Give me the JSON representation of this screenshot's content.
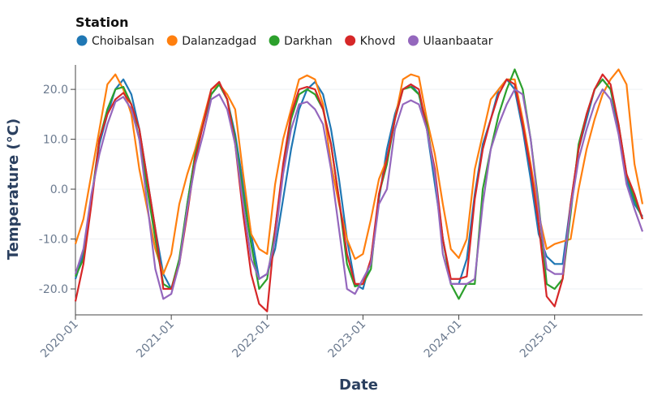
{
  "chart_data": {
    "type": "line",
    "legend_title": "Station",
    "x_label": "Date",
    "y_label": "Temperature (°C)",
    "x": [
      "2020-01",
      "2020-02",
      "2020-03",
      "2020-04",
      "2020-05",
      "2020-06",
      "2020-07",
      "2020-08",
      "2020-09",
      "2020-10",
      "2020-11",
      "2020-12",
      "2021-01",
      "2021-02",
      "2021-03",
      "2021-04",
      "2021-05",
      "2021-06",
      "2021-07",
      "2021-08",
      "2021-09",
      "2021-10",
      "2021-11",
      "2021-12",
      "2022-01",
      "2022-02",
      "2022-03",
      "2022-04",
      "2022-05",
      "2022-06",
      "2022-07",
      "2022-08",
      "2022-09",
      "2022-10",
      "2022-11",
      "2022-12",
      "2023-01",
      "2023-02",
      "2023-03",
      "2023-04",
      "2023-05",
      "2023-06",
      "2023-07",
      "2023-08",
      "2023-09",
      "2023-10",
      "2023-11",
      "2023-12",
      "2024-01",
      "2024-02",
      "2024-03",
      "2024-04",
      "2024-05",
      "2024-06",
      "2024-07",
      "2024-08",
      "2024-09",
      "2024-10",
      "2024-11",
      "2024-12",
      "2025-01",
      "2025-02",
      "2025-03",
      "2025-04",
      "2025-05",
      "2025-06",
      "2025-07",
      "2025-08",
      "2025-09",
      "2025-10",
      "2025-11",
      "2025-12"
    ],
    "xticks": [
      "2020-01",
      "2021-01",
      "2022-01",
      "2023-01",
      "2024-01",
      "2025-01"
    ],
    "ylim": [
      -25.2,
      24.9
    ],
    "yticks": [
      {
        "value": -20,
        "label": "-20.0"
      },
      {
        "value": -10,
        "label": "-10.0"
      },
      {
        "value": 0,
        "label": "0.0"
      },
      {
        "value": 10,
        "label": "10.0"
      },
      {
        "value": 20,
        "label": "20.0"
      }
    ],
    "grid": true,
    "legend_position": "top-left",
    "series": [
      {
        "name": "Choibalsan",
        "color": "#1f77b4",
        "values": [
          -18,
          -13,
          -2,
          9,
          15,
          20,
          22,
          19,
          12,
          2,
          -8,
          -17,
          -20,
          -15,
          -3,
          7,
          13,
          19,
          21,
          18,
          11,
          1,
          -9,
          -18,
          -17,
          -12,
          -2,
          8,
          16,
          20,
          21.5,
          19,
          12,
          2,
          -10,
          -19,
          -20,
          -14,
          -2,
          8,
          15,
          20,
          21,
          19,
          12,
          1,
          -10,
          -19,
          -19,
          -14,
          -1,
          9,
          14,
          20,
          22,
          20,
          12,
          2,
          -9,
          -13.5,
          -15,
          -15,
          -3,
          8,
          14,
          20,
          22,
          20,
          12,
          2,
          -3,
          -5.5
        ]
      },
      {
        "name": "Dalanzadgad",
        "color": "#ff7f0e",
        "values": [
          -11,
          -6,
          3,
          12,
          21,
          23,
          20,
          15,
          4,
          -4,
          -12,
          -17,
          -13,
          -3,
          3,
          8,
          14,
          20,
          21,
          19,
          16,
          3,
          -9,
          -12,
          -13,
          1,
          10,
          16,
          22,
          22.8,
          22,
          17,
          5,
          -3,
          -10,
          -14,
          -13,
          -6,
          2,
          6,
          14,
          22,
          23,
          22.5,
          14,
          7,
          -3,
          -12,
          -13.8,
          -10,
          4,
          11,
          18,
          20,
          22,
          22,
          14,
          5,
          -5,
          -12,
          -11,
          -10.5,
          -10,
          0,
          8,
          14,
          19,
          22,
          24,
          21,
          5,
          -3
        ]
      },
      {
        "name": "Darkhan",
        "color": "#2ca02c",
        "values": [
          -17.5,
          -14,
          -2,
          10,
          16,
          20,
          20.5,
          17,
          10,
          0,
          -10,
          -19,
          -20,
          -14,
          -3,
          7,
          13,
          19,
          21,
          18,
          10,
          -1,
          -11,
          -20,
          -18,
          -8,
          4,
          14,
          19,
          20,
          19,
          16,
          9,
          -2,
          -15,
          -19.5,
          -19,
          -16,
          -1,
          5,
          14,
          20,
          20.5,
          19,
          13,
          3,
          -10,
          -19,
          -22,
          -19,
          -19,
          0,
          8,
          15,
          20,
          24,
          20,
          10,
          -3,
          -19,
          -20,
          -18,
          -5,
          9,
          15,
          20,
          22,
          20,
          13,
          3,
          -2,
          -6
        ]
      },
      {
        "name": "Khovd",
        "color": "#d62728",
        "values": [
          -22.5,
          -15,
          -3,
          10,
          15,
          18,
          19.3,
          17,
          12,
          2,
          -8,
          -20,
          -20,
          -15,
          -5,
          6,
          13,
          20,
          21.5,
          18,
          9,
          -5,
          -17,
          -23,
          -24.5,
          -8,
          5,
          15,
          20,
          20.5,
          20,
          16,
          9,
          -2,
          -13,
          -19,
          -19,
          -14,
          -1,
          6,
          14,
          20,
          21,
          20,
          12,
          4,
          -10,
          -18,
          -18,
          -17.5,
          -2,
          8,
          14,
          19,
          22,
          21,
          13,
          4,
          -7,
          -21.5,
          -23.5,
          -18,
          -3,
          8,
          15,
          20,
          23,
          21,
          13,
          3,
          -1,
          -6
        ]
      },
      {
        "name": "Ulaanbaatar",
        "color": "#9467bd",
        "values": [
          -17,
          -12,
          -1,
          7,
          13,
          17.5,
          18.5,
          16,
          10,
          -3,
          -16,
          -22,
          -21,
          -15,
          -4,
          5,
          11,
          18,
          19,
          16,
          9,
          -3,
          -14,
          -18,
          -17,
          -10,
          3,
          12,
          17,
          17.5,
          16,
          13,
          4,
          -8,
          -20,
          -21,
          -18,
          -15,
          -3,
          0,
          12,
          17,
          17.8,
          17,
          12,
          3,
          -13,
          -19,
          -19,
          -19,
          -18,
          -3,
          8,
          13,
          17,
          20,
          19,
          10,
          -4,
          -16,
          -17,
          -17,
          -4,
          6,
          12,
          17,
          20,
          18,
          11,
          1,
          -4,
          -8.5
        ]
      }
    ]
  }
}
